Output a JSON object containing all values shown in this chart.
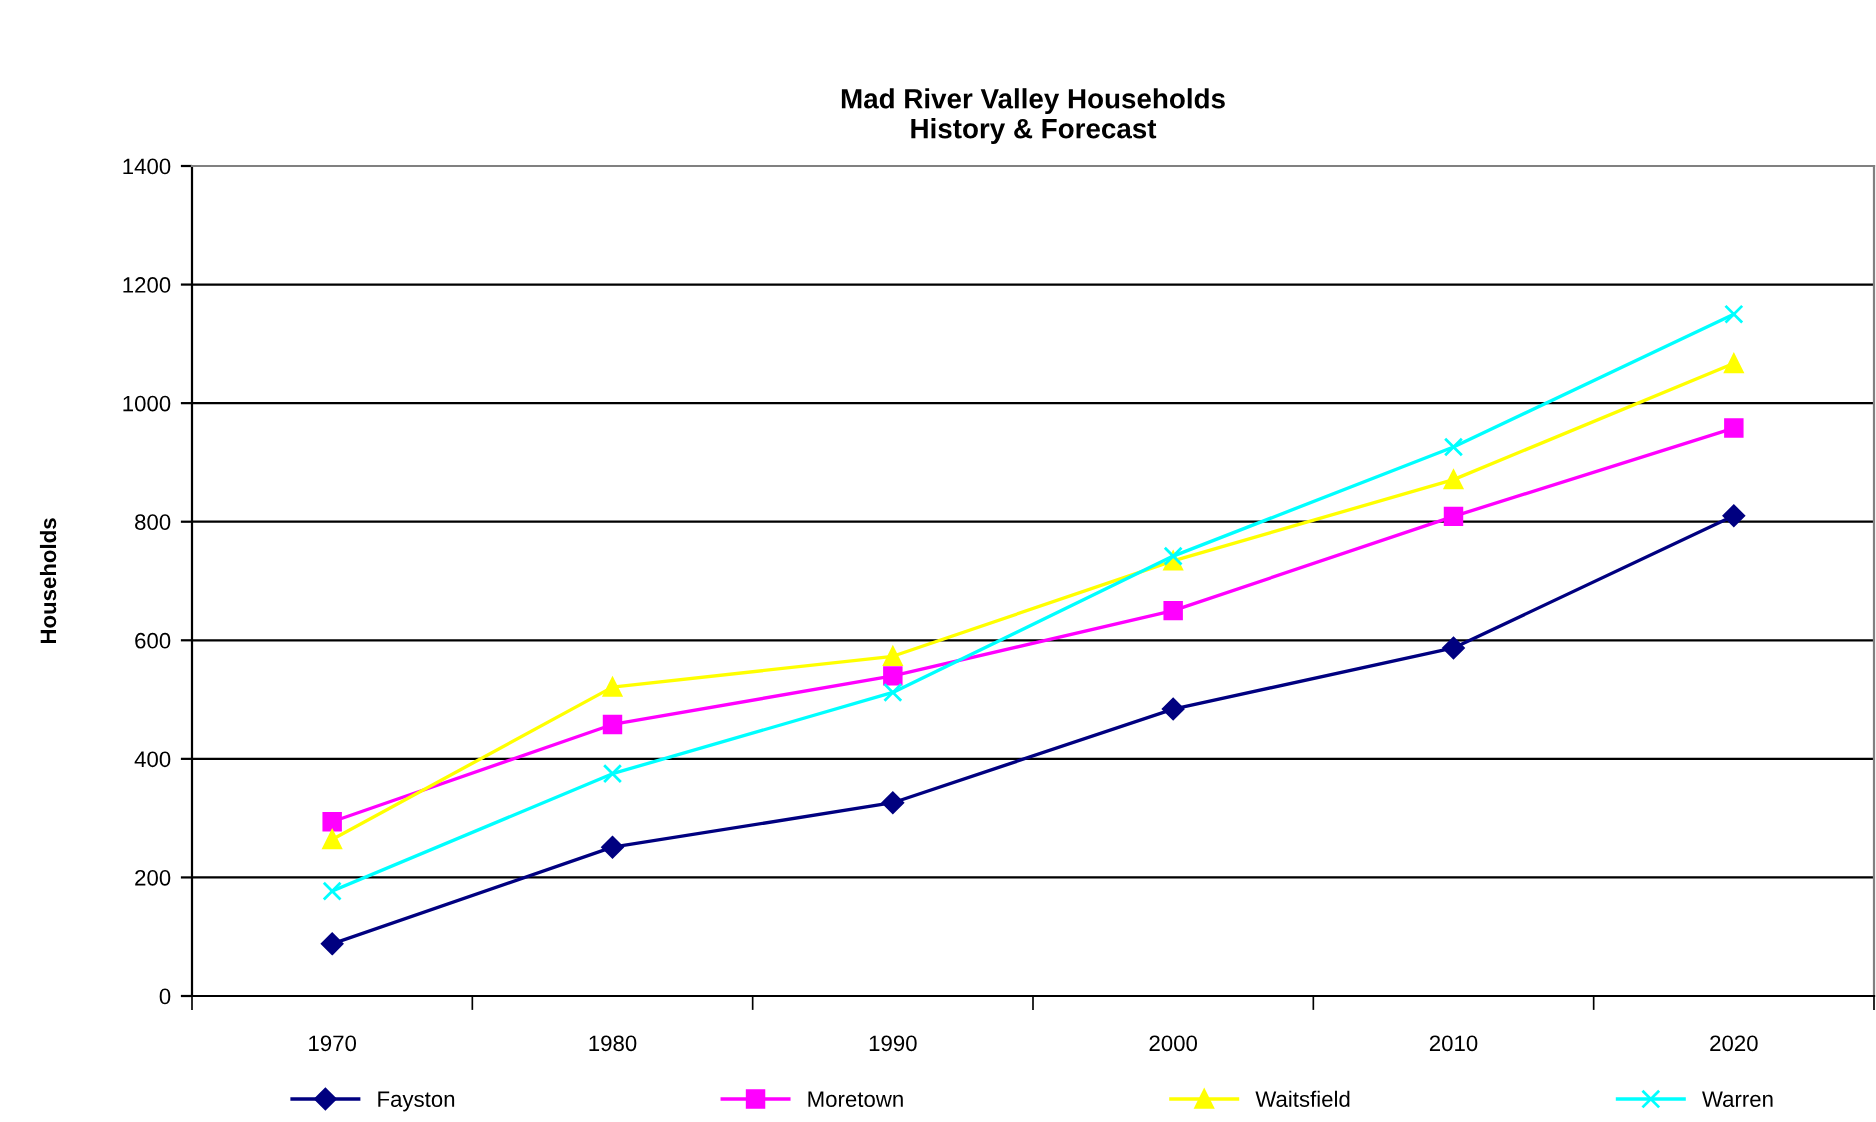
{
  "chart_data": {
    "type": "line",
    "title": "Mad River Valley Households\nHistory & Forecast",
    "ylabel": "Households",
    "categories": [
      "1970",
      "1980",
      "1990",
      "2000",
      "2010",
      "2020"
    ],
    "series": [
      {
        "name": "Fayston",
        "color": "#000080",
        "marker": "diamond",
        "values": [
          88,
          251,
          326,
          484,
          587,
          810
        ]
      },
      {
        "name": "Moretown",
        "color": "#ff00ff",
        "marker": "square",
        "values": [
          294,
          458,
          540,
          650,
          809,
          958
        ]
      },
      {
        "name": "Waitsfield",
        "color": "#ffff00",
        "marker": "triangle",
        "values": [
          264,
          521,
          573,
          734,
          871,
          1067
        ]
      },
      {
        "name": "Warren",
        "color": "#00ffff",
        "marker": "cross",
        "values": [
          177,
          375,
          512,
          742,
          926,
          1150
        ]
      }
    ],
    "ylim": [
      0,
      1400
    ],
    "yticks": [
      0,
      200,
      400,
      600,
      800,
      1000,
      1200,
      1400
    ],
    "grid": "y",
    "legend": "bottom",
    "line_style": "solid"
  }
}
